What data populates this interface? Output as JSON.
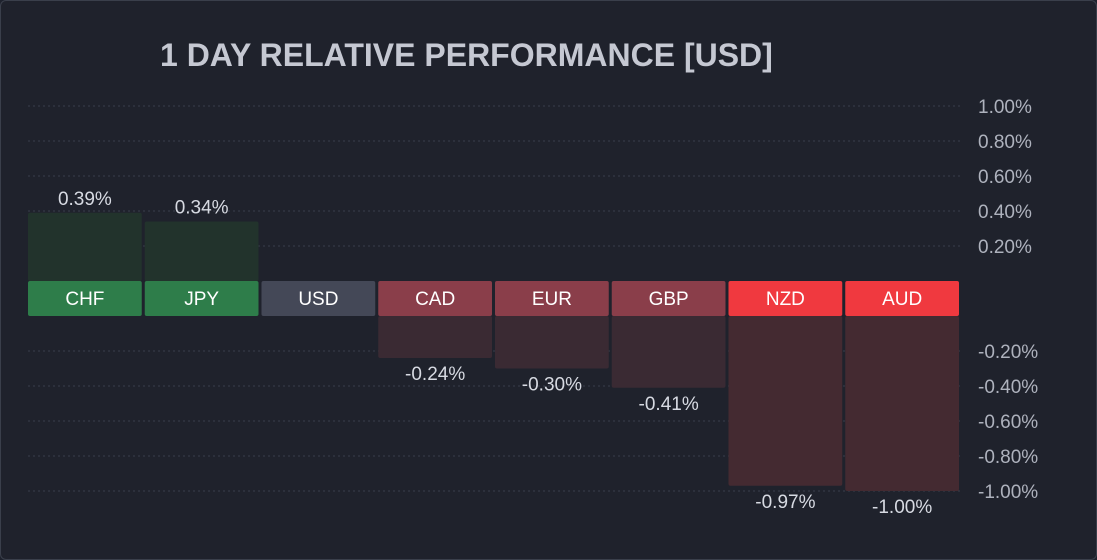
{
  "chart_data": {
    "type": "bar",
    "title": "1 DAY RELATIVE PERFORMANCE  [USD]",
    "categories": [
      "CHF",
      "JPY",
      "USD",
      "CAD",
      "EUR",
      "GBP",
      "NZD",
      "AUD"
    ],
    "values": [
      0.39,
      0.34,
      0.0,
      -0.24,
      -0.3,
      -0.41,
      -0.97,
      -1.0
    ],
    "value_labels": [
      "0.39%",
      "0.34%",
      "",
      "-0.24%",
      "-0.30%",
      "-0.41%",
      "-0.97%",
      "-1.00%"
    ],
    "y_ticks_positive": [
      "1.00%",
      "0.80%",
      "0.60%",
      "0.40%",
      "0.20%"
    ],
    "y_ticks_negative": [
      "-0.20%",
      "-0.40%",
      "-0.60%",
      "-0.80%",
      "-1.00%"
    ],
    "y_tick_values_positive": [
      1.0,
      0.8,
      0.6,
      0.4,
      0.2
    ],
    "y_tick_values_negative": [
      -0.2,
      -0.4,
      -0.6,
      -0.8,
      -1.0
    ],
    "ylim": [
      -1.0,
      1.0
    ],
    "grid": true,
    "axis_side": "right",
    "category_colors": [
      "#2e7d4a",
      "#2e7d4a",
      "#444857",
      "#8a3e4a",
      "#8a3e4a",
      "#8a3e4a",
      "#f0393f",
      "#f0393f"
    ],
    "bar_fill_colors": [
      "#22332c",
      "#22332c",
      "#2a2d38",
      "#3a2a33",
      "#3a2a33",
      "#3a2a33",
      "#442a31",
      "#442a31"
    ],
    "grid_color": "#3a3f4b",
    "background_color": "#1f222c"
  }
}
